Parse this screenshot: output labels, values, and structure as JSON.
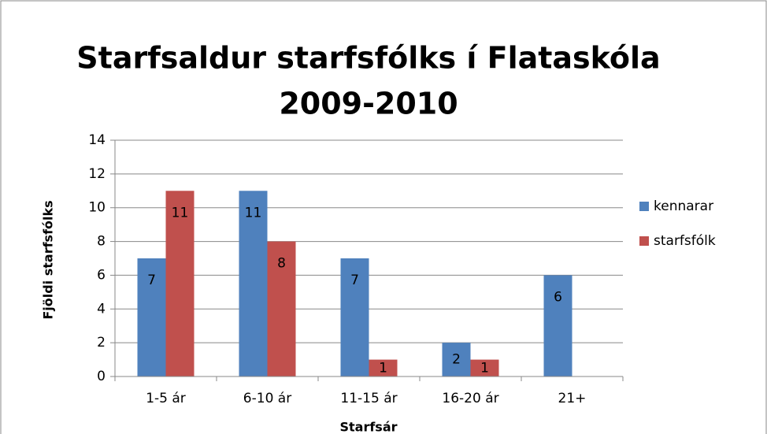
{
  "chart_data": {
    "type": "bar",
    "title": [
      "Starfsaldur starfsfólks í Flataskóla",
      "2009-2010"
    ],
    "x_label": "Starfsár",
    "y_label": "Fjöldi starfsfólks",
    "categories": [
      "1-5 ár",
      "6-10 ár",
      "11-15 ár",
      "16-20 ár",
      "21+"
    ],
    "series": [
      {
        "name": "kennarar",
        "color": "#4f81bd",
        "values": [
          7,
          11,
          7,
          2,
          6
        ]
      },
      {
        "name": "starfsfólk",
        "color": "#c0504d",
        "values": [
          11,
          8,
          1,
          1,
          null
        ]
      }
    ],
    "ylim": [
      0,
      14
    ],
    "yticks": [
      0,
      2,
      4,
      6,
      8,
      10,
      12,
      14
    ],
    "grid": true,
    "legend": "right"
  }
}
